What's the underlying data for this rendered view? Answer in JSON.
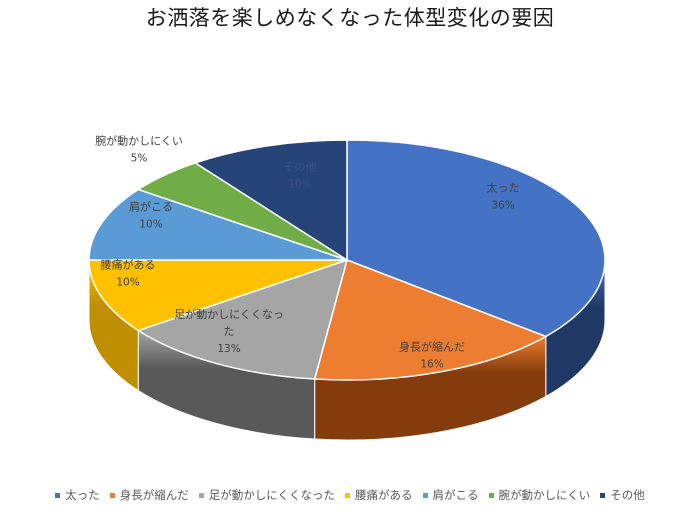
{
  "chart_data": {
    "type": "pie",
    "title": "お洒落を楽しめなくなった体型変化の要因",
    "legend_position": "bottom",
    "slices": [
      {
        "label": "太った",
        "value": 36,
        "value_label": "36%",
        "color": "#4472C4",
        "side_color": "#1F3864",
        "slice_label": "太った"
      },
      {
        "label": "身長が縮んだ",
        "value": 16,
        "value_label": "16%",
        "color": "#ED7D31",
        "side_color": "#843C0C",
        "slice_label": "身長が縮んだ"
      },
      {
        "label": "足が動かしにくくなった",
        "value": 13,
        "value_label": "13%",
        "color": "#A5A5A5",
        "side_color": "#595959",
        "slice_label": "足が動かしにくくなっ|た"
      },
      {
        "label": "腰痛がある",
        "value": 10,
        "value_label": "10%",
        "color": "#FFC000",
        "side_color": "#BF8F00",
        "slice_label": "腰痛がある"
      },
      {
        "label": "肩がこる",
        "value": 10,
        "value_label": "10%",
        "color": "#5B9BD5",
        "side_color": "#2E75B6",
        "slice_label": "肩がこる"
      },
      {
        "label": "腕が動かしにくい",
        "value": 5,
        "value_label": "5%",
        "color": "#70AD47",
        "side_color": "#385723",
        "slice_label": "腕が動かしにくい"
      },
      {
        "label": "その他",
        "value": 10,
        "value_label": "10%",
        "color": "#264478",
        "side_color": "#17294A",
        "slice_label": "その他"
      }
    ]
  }
}
